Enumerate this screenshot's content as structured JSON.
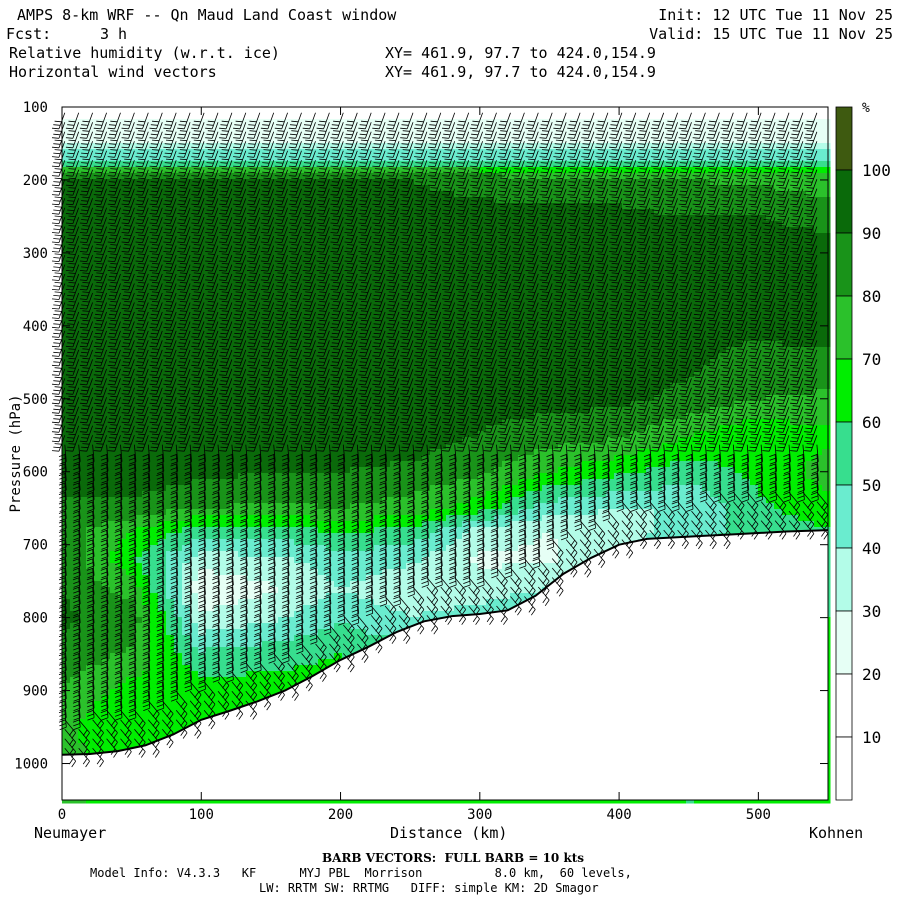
{
  "header": {
    "title": "AMPS 8-km WRF -- Qn Maud Land Coast window",
    "init": "Init: 12 UTC Tue 11 Nov 25",
    "fcst_label": "Fcst:",
    "fcst_value": "3 h",
    "valid": "Valid: 15 UTC Tue 11 Nov 25",
    "field1": "Relative humidity (w.r.t. ice)",
    "field2": "Horizontal wind vectors",
    "xy1": "XY= 461.9, 97.7 to 424.0,154.9",
    "xy2": "XY= 461.9, 97.7 to 424.0,154.9"
  },
  "footer": {
    "barb_note": "BARB VECTORS:  FULL BARB = 10 kts",
    "model_info": "Model Info: V4.3.3   KF      MYJ PBL  Morrison          8.0 km,  60 levels,",
    "physics": "LW: RRTM SW: RRTMG   DIFF: simple KM: 2D Smagor"
  },
  "colors": {
    "levels": [
      "#ffffff",
      "#ffffff",
      "#e6fff5",
      "#b3fce8",
      "#6aeccf",
      "#37de8e",
      "#00ee00",
      "#2bc12b",
      "#199319",
      "#0a6a0a",
      "#3e5a10"
    ]
  },
  "chart_data": {
    "type": "heatmap",
    "title": "Relative humidity (w.r.t. ice)",
    "xlabel": "Distance (km)",
    "ylabel": "Pressure (hPa)",
    "x_left_label": "Neumayer",
    "x_right_label": "Kohnen",
    "xlim": [
      0,
      550
    ],
    "ylim": [
      1050,
      100
    ],
    "x_ticks": [
      0,
      100,
      200,
      300,
      400,
      500
    ],
    "y_ticks": [
      100,
      200,
      300,
      400,
      500,
      600,
      700,
      800,
      900,
      1000
    ],
    "colorbar_unit": "%",
    "colorbar_ticks": [
      10,
      20,
      30,
      40,
      50,
      60,
      70,
      80,
      90,
      100
    ],
    "terrain_surface": {
      "distance_km": [
        0,
        20,
        40,
        60,
        80,
        100,
        120,
        140,
        160,
        180,
        200,
        220,
        240,
        260,
        280,
        300,
        320,
        340,
        360,
        380,
        400,
        420,
        440,
        460,
        480,
        500,
        520,
        550
      ],
      "pressure_hPa": [
        988,
        987,
        983,
        975,
        960,
        940,
        928,
        915,
        900,
        880,
        858,
        840,
        820,
        805,
        798,
        795,
        790,
        770,
        740,
        718,
        700,
        692,
        690,
        688,
        686,
        684,
        682,
        680
      ]
    },
    "rh_profiles": {
      "distance_km": [
        0,
        50,
        100,
        150,
        200,
        250,
        300,
        350,
        400,
        450,
        500,
        550
      ],
      "pressure_hPa": [
        100,
        150,
        175,
        200,
        250,
        300,
        400,
        500,
        550,
        600,
        650,
        680,
        720,
        760,
        800,
        850,
        900,
        950,
        990
      ],
      "rh_percent": [
        [
          15,
          28,
          55,
          90,
          96,
          92,
          94,
          97,
          95,
          92,
          89,
          86,
          88,
          90,
          92,
          88,
          78,
          72,
          75
        ],
        [
          15,
          28,
          55,
          90,
          96,
          95,
          97,
          97,
          97,
          96,
          88,
          70,
          62,
          75,
          86,
          78,
          66,
          62,
          60
        ],
        [
          15,
          28,
          55,
          90,
          95,
          96,
          97,
          97,
          97,
          93,
          80,
          55,
          35,
          22,
          32,
          52,
          65,
          70,
          70
        ],
        [
          15,
          28,
          55,
          90,
          94,
          92,
          94,
          95,
          95,
          90,
          78,
          55,
          38,
          28,
          38,
          55,
          65,
          65,
          65
        ],
        [
          15,
          28,
          55,
          90,
          93,
          90,
          90,
          93,
          95,
          90,
          80,
          62,
          45,
          40,
          48,
          60,
          65,
          65,
          65
        ],
        [
          15,
          28,
          55,
          90,
          92,
          96,
          93,
          90,
          95,
          88,
          76,
          58,
          42,
          33,
          40,
          55,
          60,
          60,
          60
        ],
        [
          15,
          28,
          55,
          88,
          92,
          97,
          95,
          92,
          90,
          82,
          65,
          38,
          28,
          35,
          45,
          55,
          60,
          60,
          60
        ],
        [
          15,
          28,
          55,
          85,
          92,
          90,
          94,
          94,
          85,
          70,
          45,
          30,
          28,
          40,
          50,
          55,
          60,
          60,
          60
        ],
        [
          15,
          28,
          55,
          85,
          92,
          96,
          94,
          92,
          82,
          62,
          40,
          35,
          40,
          50,
          55,
          60,
          60,
          60,
          60
        ],
        [
          15,
          28,
          55,
          80,
          90,
          96,
          95,
          88,
          70,
          55,
          40,
          45,
          50,
          55,
          60,
          60,
          60,
          60,
          60
        ],
        [
          15,
          28,
          55,
          78,
          90,
          96,
          92,
          80,
          62,
          62,
          58,
          55,
          55,
          55,
          60,
          60,
          60,
          60,
          60
        ],
        [
          15,
          28,
          55,
          75,
          85,
          97,
          96,
          78,
          68,
          75,
          65,
          60,
          60,
          60,
          60,
          60,
          60,
          60,
          60
        ]
      ]
    },
    "wind_barbs_note": "FULL BARB = 10 kts"
  }
}
